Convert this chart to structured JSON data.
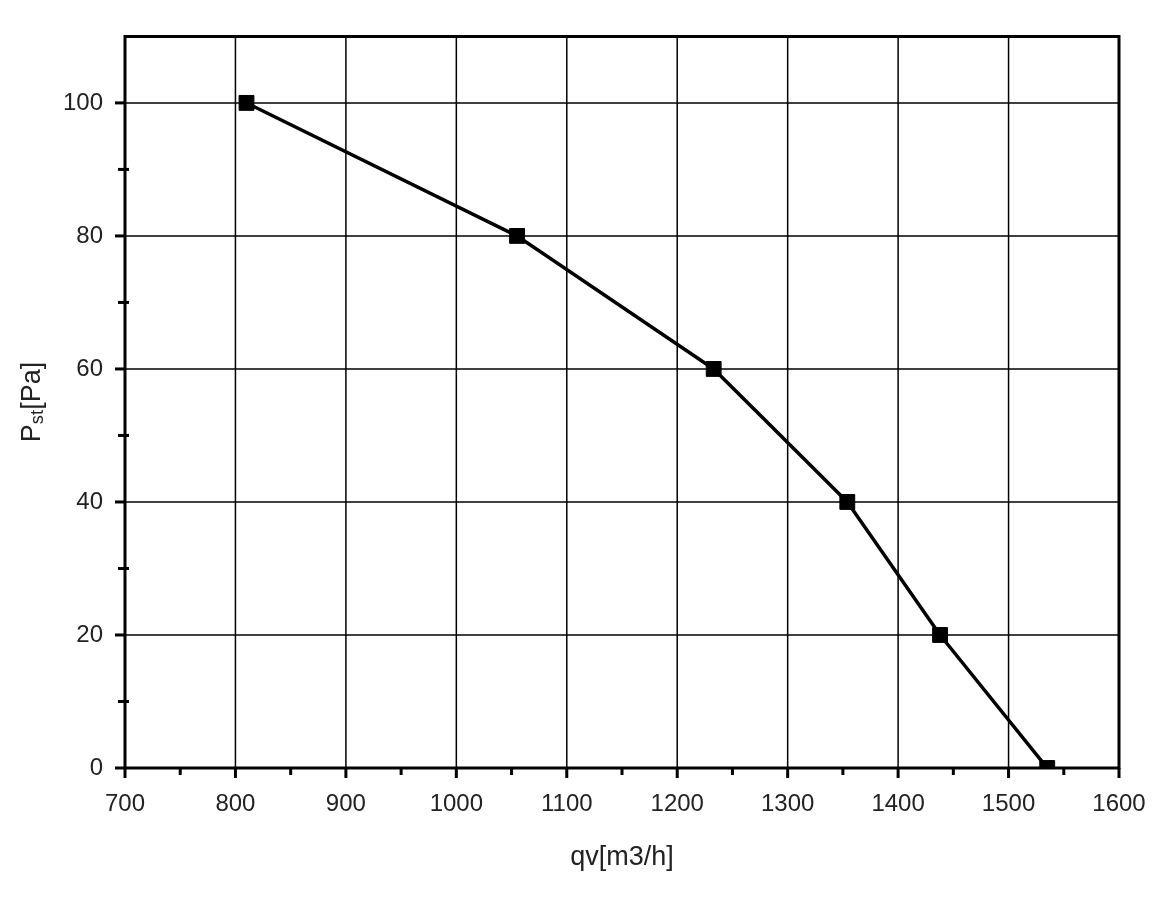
{
  "chart_data": {
    "type": "line",
    "xlabel": "qv[m3/h]",
    "ylabel": "P$_{st}$[Pa]",
    "x": [
      810,
      1055,
      1233,
      1354,
      1438,
      1535
    ],
    "series": [
      {
        "color": "#000000",
        "values": [
          100,
          80,
          60,
          40,
          20,
          0
        ]
      }
    ],
    "xlim": [
      700,
      1600
    ],
    "ylim": [
      0,
      110
    ],
    "xticks": [
      700,
      {
        "value": 750,
        "label": null
      },
      800,
      {
        "value": 850,
        "label": null
      },
      900,
      {
        "value": 950,
        "label": null
      },
      1000,
      {
        "value": 1050,
        "label": null
      },
      1100,
      {
        "value": 1150,
        "label": null
      },
      1200,
      {
        "value": 1250,
        "label": null
      },
      1300,
      {
        "value": 1350,
        "label": null
      },
      1400,
      {
        "value": 1450,
        "label": null
      },
      1500,
      {
        "value": 1550,
        "label": null
      },
      1600
    ],
    "yticks": [
      0,
      {
        "value": 10,
        "label": null
      },
      20,
      {
        "value": 30,
        "label": null
      },
      40,
      {
        "value": 50,
        "label": null
      },
      60,
      {
        "value": 70,
        "label": null
      },
      80,
      {
        "value": 90,
        "label": null
      },
      100
    ],
    "grid": true,
    "marker": "square",
    "line_style": "solid"
  }
}
